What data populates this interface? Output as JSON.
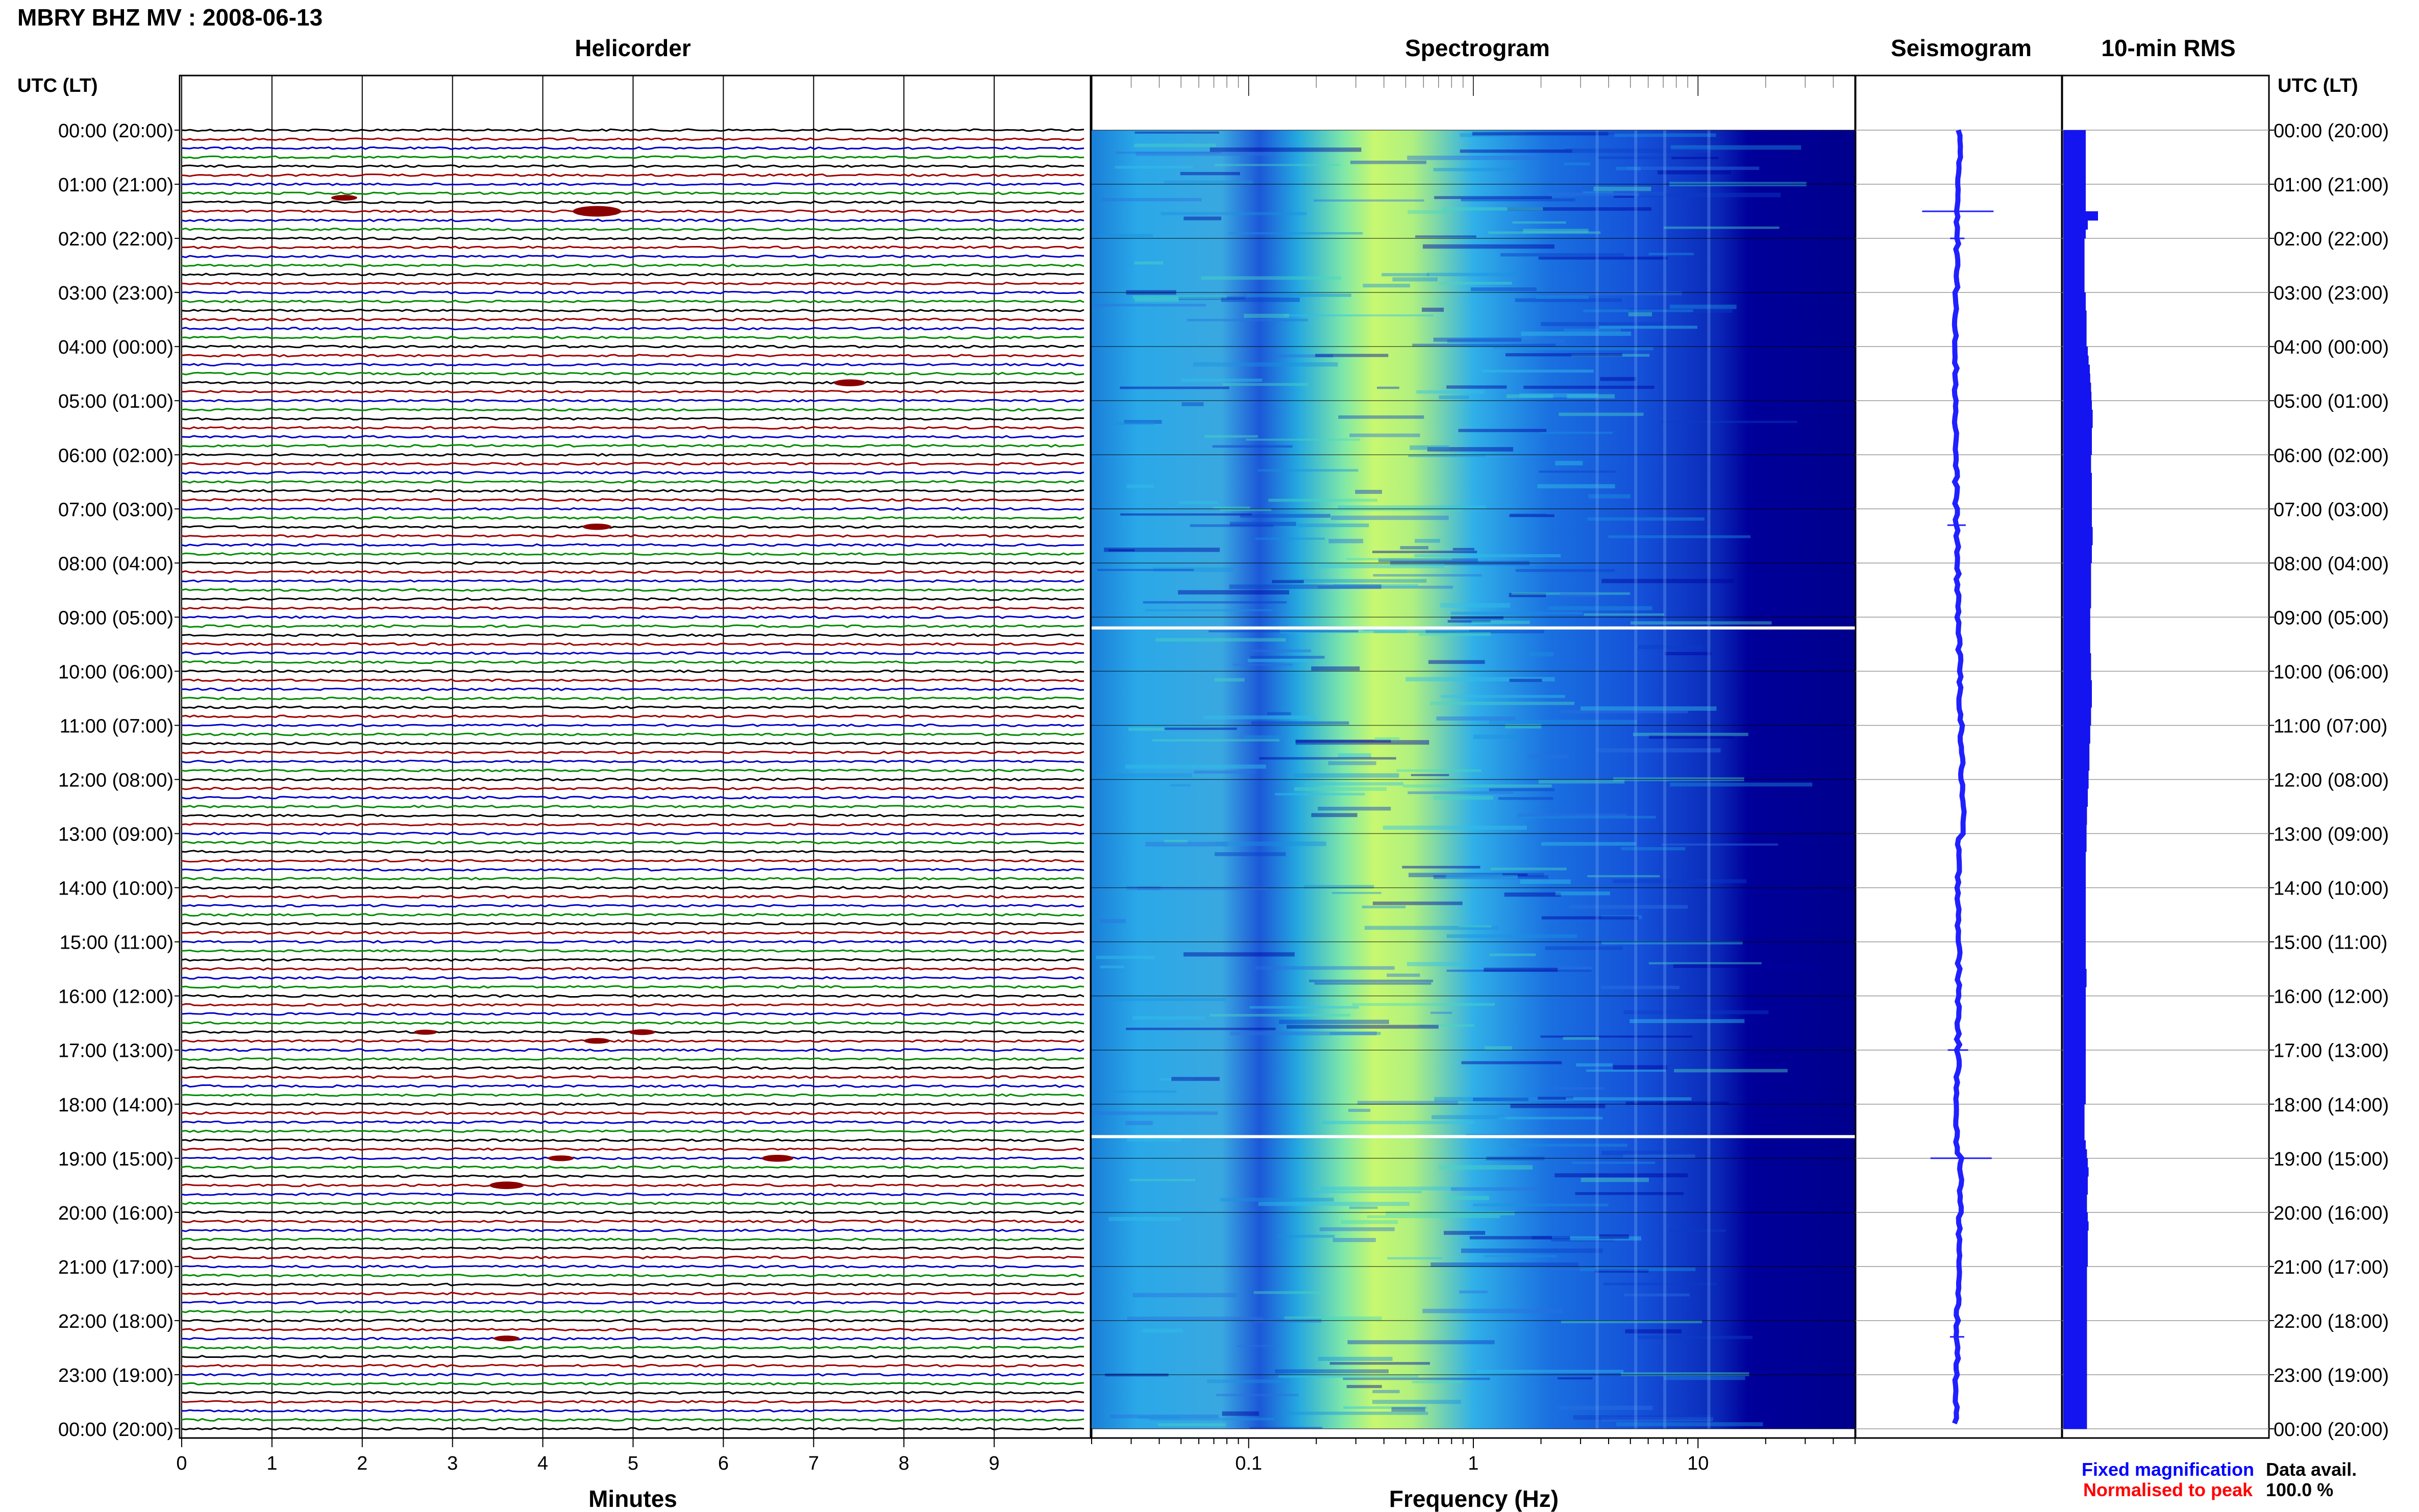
{
  "header": {
    "title": "MBRY BHZ MV : 2008-06-13",
    "left_axis_title": "UTC (LT)",
    "right_axis_title": "UTC (LT)"
  },
  "panels": {
    "helicorder": "Helicorder",
    "spectrogram": "Spectrogram",
    "seismogram": "Seismogram",
    "rms": "10-min RMS"
  },
  "time_labels": [
    "00:00 (20:00)",
    "01:00 (21:00)",
    "02:00 (22:00)",
    "03:00 (23:00)",
    "04:00 (00:00)",
    "05:00 (01:00)",
    "06:00 (02:00)",
    "07:00 (03:00)",
    "08:00 (04:00)",
    "09:00 (05:00)",
    "10:00 (06:00)",
    "11:00 (07:00)",
    "12:00 (08:00)",
    "13:00 (09:00)",
    "14:00 (10:00)",
    "15:00 (11:00)",
    "16:00 (12:00)",
    "17:00 (13:00)",
    "18:00 (14:00)",
    "19:00 (15:00)",
    "20:00 (16:00)",
    "21:00 (17:00)",
    "22:00 (18:00)",
    "23:00 (19:00)",
    "00:00 (20:00)"
  ],
  "footer": {
    "minutes_label": "Minutes",
    "frequency_label": "Frequency (Hz)",
    "legend_fixed": "Fixed magnification",
    "legend_normalised": "Normalised to peak",
    "data_avail_label": "Data avail.",
    "data_avail_value": "100.0 %"
  },
  "colors": {
    "trace_cycle": [
      "#000000",
      "#a00000",
      "#0000c8",
      "#008c00"
    ],
    "legend_fixed": "#0000ff",
    "legend_normalised": "#ff0000",
    "seismogram_trace": "#2020ff",
    "rms_bars": "#1414f0",
    "spectrogram_low": "#00008c",
    "spectrogram_high": "#d8ff50"
  },
  "chart_data": [
    {
      "type": "line",
      "name": "helicorder",
      "xlabel": "Minutes",
      "x_ticks": [
        0,
        1,
        2,
        3,
        4,
        5,
        6,
        7,
        8,
        9
      ],
      "xlim": [
        0,
        10
      ],
      "ylim_hours": [
        0,
        24
      ],
      "traces_per_hour": 6,
      "trace_count": 144,
      "events": [
        {
          "hour": 1.25,
          "minute": 1.8,
          "amp": 0.6
        },
        {
          "hour": 1.5,
          "minute": 4.6,
          "amp": 1.4
        },
        {
          "hour": 4.67,
          "minute": 7.4,
          "amp": 0.8
        },
        {
          "hour": 7.33,
          "minute": 4.6,
          "amp": 0.7
        },
        {
          "hour": 16.67,
          "minute": 2.7,
          "amp": 0.5
        },
        {
          "hour": 16.67,
          "minute": 5.1,
          "amp": 0.6
        },
        {
          "hour": 16.83,
          "minute": 4.6,
          "amp": 0.6
        },
        {
          "hour": 19.0,
          "minute": 4.2,
          "amp": 0.6
        },
        {
          "hour": 19.0,
          "minute": 6.6,
          "amp": 0.8
        },
        {
          "hour": 19.5,
          "minute": 3.6,
          "amp": 0.9
        },
        {
          "hour": 22.33,
          "minute": 3.6,
          "amp": 0.6
        }
      ]
    },
    {
      "type": "heatmap",
      "name": "spectrogram",
      "xlabel": "Frequency (Hz)",
      "x_scale": "log",
      "xlim": [
        0.02,
        50
      ],
      "x_tick_labels": [
        "0.1",
        "1",
        "10"
      ],
      "ylim_hours": [
        0,
        24
      ],
      "peak_frequency_hz": 0.4,
      "gaps_hours": [
        9.2,
        18.6
      ]
    },
    {
      "type": "line",
      "name": "seismogram",
      "ylim_hours": [
        0,
        24
      ]
    },
    {
      "type": "bar",
      "name": "10-min RMS",
      "bins_per_hour": 6,
      "relative_levels": [
        0.55,
        0.55,
        0.55,
        0.55,
        0.55,
        0.55,
        0.55,
        0.55,
        0.55,
        0.85,
        0.6,
        0.55,
        0.52,
        0.52,
        0.52,
        0.52,
        0.52,
        0.52,
        0.55,
        0.55,
        0.57,
        0.57,
        0.57,
        0.57,
        0.6,
        0.62,
        0.65,
        0.66,
        0.68,
        0.69,
        0.7,
        0.72,
        0.72,
        0.7,
        0.7,
        0.7,
        0.68,
        0.68,
        0.7,
        0.7,
        0.7,
        0.7,
        0.7,
        0.7,
        0.72,
        0.72,
        0.7,
        0.7,
        0.68,
        0.68,
        0.68,
        0.68,
        0.68,
        0.66,
        0.66,
        0.66,
        0.66,
        0.66,
        0.68,
        0.68,
        0.68,
        0.7,
        0.7,
        0.7,
        0.68,
        0.68,
        0.66,
        0.66,
        0.64,
        0.64,
        0.64,
        0.62,
        0.62,
        0.6,
        0.6,
        0.58,
        0.58,
        0.57,
        0.57,
        0.57,
        0.55,
        0.55,
        0.55,
        0.55,
        0.55,
        0.55,
        0.55,
        0.55,
        0.55,
        0.55,
        0.55,
        0.55,
        0.55,
        0.57,
        0.57,
        0.55,
        0.55,
        0.55,
        0.55,
        0.55,
        0.55,
        0.55,
        0.55,
        0.55,
        0.55,
        0.55,
        0.55,
        0.55,
        0.52,
        0.52,
        0.52,
        0.52,
        0.55,
        0.58,
        0.6,
        0.62,
        0.6,
        0.6,
        0.58,
        0.58,
        0.6,
        0.62,
        0.6,
        0.6,
        0.6,
        0.6,
        0.58,
        0.58,
        0.58,
        0.58,
        0.58,
        0.58,
        0.58,
        0.58,
        0.58,
        0.58,
        0.58,
        0.58,
        0.58,
        0.58,
        0.58,
        0.58,
        0.58,
        0.58
      ]
    }
  ]
}
